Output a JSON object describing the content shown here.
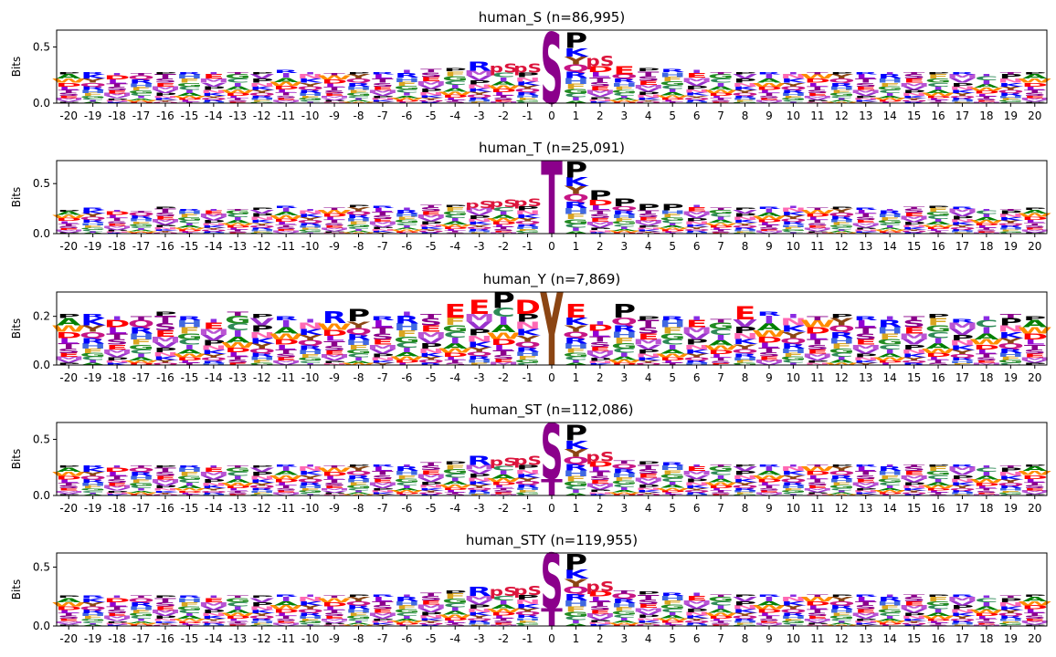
{
  "figure": {
    "background": "#ffffff"
  },
  "colors": {
    "S": "#8b008b",
    "T": "#8b008b",
    "Y": "#8b4513",
    "P": "#000000",
    "pS": "#dc143c",
    "pT": "#dc143c",
    "R": "#0000ff",
    "K": "#0000ff",
    "H": "#4169e1",
    "D": "#ff0000",
    "E": "#ff0000",
    "A": "#008000",
    "G": "#228b22",
    "C": "#2e8b57",
    "L": "#9400d3",
    "I": "#8a2be2",
    "V": "#9932cc",
    "M": "#ba55d3",
    "F": "#daa520",
    "W": "#ff8c00",
    "N": "#ff69b4",
    "Q": "#c71585"
  },
  "chart_data": [
    {
      "type": "logo",
      "title": "human_S (n=86,995)",
      "ylabel": "Bits",
      "ylim": [
        0,
        0.65
      ],
      "yticks": [
        "0.0",
        "0.5"
      ],
      "ytick_values": [
        0,
        0.5
      ],
      "positions": [
        -20,
        -19,
        -18,
        -17,
        -16,
        -15,
        -14,
        -13,
        -12,
        -11,
        -10,
        -9,
        -8,
        -7,
        -6,
        -5,
        -4,
        -3,
        -2,
        -1,
        0,
        1,
        2,
        3,
        4,
        5,
        6,
        7,
        8,
        9,
        10,
        11,
        12,
        13,
        14,
        15,
        16,
        17,
        18,
        19,
        20
      ],
      "center": {
        "top": "S",
        "top_bits": 0.63,
        "bottom": "",
        "bottom_bits": 0
      },
      "column_bits": [
        0.28,
        0.28,
        0.27,
        0.27,
        0.28,
        0.28,
        0.28,
        0.28,
        0.28,
        0.29,
        0.28,
        0.27,
        0.28,
        0.28,
        0.29,
        0.3,
        0.31,
        0.37,
        0.35,
        0.35,
        0.63,
        0.63,
        0.42,
        0.33,
        0.31,
        0.3,
        0.29,
        0.28,
        0.28,
        0.28,
        0.28,
        0.28,
        0.28,
        0.28,
        0.28,
        0.28,
        0.28,
        0.28,
        0.26,
        0.28,
        0.28
      ],
      "top_letters": {
        "1": "P",
        "-3": "R",
        "-2": "pS",
        "-1": "pS",
        "2": "pS",
        "3": "E"
      }
    },
    {
      "type": "logo",
      "title": "human_T (n=25,091)",
      "ylabel": "Bits",
      "ylim": [
        0,
        0.73
      ],
      "yticks": [
        "0.0",
        "0.5"
      ],
      "ytick_values": [
        0,
        0.5
      ],
      "positions": [
        -20,
        -19,
        -18,
        -17,
        -16,
        -15,
        -14,
        -13,
        -12,
        -11,
        -10,
        -9,
        -8,
        -7,
        -6,
        -5,
        -4,
        -3,
        -2,
        -1,
        0,
        1,
        2,
        3,
        4,
        5,
        6,
        7,
        8,
        9,
        10,
        11,
        12,
        13,
        14,
        15,
        16,
        17,
        18,
        19,
        20
      ],
      "center": {
        "top": "T",
        "top_bits": 0.73,
        "bottom": "",
        "bottom_bits": 0
      },
      "column_bits": [
        0.24,
        0.26,
        0.24,
        0.23,
        0.27,
        0.25,
        0.25,
        0.25,
        0.26,
        0.28,
        0.25,
        0.26,
        0.29,
        0.28,
        0.26,
        0.29,
        0.29,
        0.33,
        0.34,
        0.35,
        0.73,
        0.72,
        0.43,
        0.35,
        0.3,
        0.3,
        0.29,
        0.26,
        0.26,
        0.27,
        0.28,
        0.26,
        0.27,
        0.26,
        0.25,
        0.27,
        0.28,
        0.27,
        0.25,
        0.25,
        0.26
      ],
      "top_letters": {
        "1": "P",
        "-2": "pS",
        "-1": "pS",
        "-3": "pS",
        "2": "P",
        "3": "P",
        "4": "P",
        "5": "P"
      }
    },
    {
      "type": "logo",
      "title": "human_Y (n=7,869)",
      "ylabel": "Bits",
      "ylim": [
        0,
        0.3
      ],
      "yticks": [
        "0.0",
        "0.2"
      ],
      "ytick_values": [
        0,
        0.2
      ],
      "positions": [
        -20,
        -19,
        -18,
        -17,
        -16,
        -15,
        -14,
        -13,
        -12,
        -11,
        -10,
        -9,
        -8,
        -7,
        -6,
        -5,
        -4,
        -3,
        -2,
        -1,
        0,
        1,
        2,
        3,
        4,
        5,
        6,
        7,
        8,
        9,
        10,
        11,
        12,
        13,
        14,
        15,
        16,
        17,
        18,
        19,
        20
      ],
      "center": {
        "top": "Y",
        "top_bits": 0.3,
        "bottom": "",
        "bottom_bits": 0
      },
      "column_bits": [
        0.21,
        0.21,
        0.2,
        0.2,
        0.22,
        0.2,
        0.19,
        0.22,
        0.21,
        0.2,
        0.19,
        0.22,
        0.23,
        0.2,
        0.22,
        0.21,
        0.25,
        0.27,
        0.3,
        0.27,
        0.3,
        0.25,
        0.18,
        0.25,
        0.2,
        0.2,
        0.2,
        0.19,
        0.24,
        0.22,
        0.21,
        0.2,
        0.21,
        0.2,
        0.2,
        0.2,
        0.21,
        0.19,
        0.2,
        0.21,
        0.2
      ],
      "top_letters": {
        "-9": "R",
        "-8": "P",
        "-4": "E",
        "-3": "E",
        "-2": "P",
        "-1": "D",
        "1": "E",
        "3": "P",
        "8": "E"
      }
    },
    {
      "type": "logo",
      "title": "human_ST (n=112,086)",
      "ylabel": "Bits",
      "ylim": [
        0,
        0.65
      ],
      "yticks": [
        "0.0",
        "0.5"
      ],
      "ytick_values": [
        0,
        0.5
      ],
      "positions": [
        -20,
        -19,
        -18,
        -17,
        -16,
        -15,
        -14,
        -13,
        -12,
        -11,
        -10,
        -9,
        -8,
        -7,
        -6,
        -5,
        -4,
        -3,
        -2,
        -1,
        0,
        1,
        2,
        3,
        4,
        5,
        6,
        7,
        8,
        9,
        10,
        11,
        12,
        13,
        14,
        15,
        16,
        17,
        18,
        19,
        20
      ],
      "center": {
        "top": "S",
        "top_bits": 0.64,
        "bottom": "T",
        "bottom_bits": 0.15
      },
      "column_bits": [
        0.27,
        0.27,
        0.27,
        0.27,
        0.27,
        0.27,
        0.27,
        0.27,
        0.27,
        0.28,
        0.28,
        0.27,
        0.28,
        0.28,
        0.28,
        0.29,
        0.3,
        0.35,
        0.34,
        0.35,
        0.64,
        0.63,
        0.39,
        0.31,
        0.3,
        0.29,
        0.28,
        0.28,
        0.28,
        0.28,
        0.28,
        0.28,
        0.28,
        0.28,
        0.28,
        0.28,
        0.28,
        0.28,
        0.27,
        0.27,
        0.28
      ],
      "top_letters": {
        "1": "P",
        "-3": "R",
        "-2": "pS",
        "-1": "pS",
        "2": "pS"
      }
    },
    {
      "type": "logo",
      "title": "human_STY (n=119,955)",
      "ylabel": "Bits",
      "ylim": [
        0,
        0.62
      ],
      "yticks": [
        "0.0",
        "0.5"
      ],
      "ytick_values": [
        0,
        0.5
      ],
      "positions": [
        -20,
        -19,
        -18,
        -17,
        -16,
        -15,
        -14,
        -13,
        -12,
        -11,
        -10,
        -9,
        -8,
        -7,
        -6,
        -5,
        -4,
        -3,
        -2,
        -1,
        0,
        1,
        2,
        3,
        4,
        5,
        6,
        7,
        8,
        9,
        10,
        11,
        12,
        13,
        14,
        15,
        16,
        17,
        18,
        19,
        20
      ],
      "center": {
        "top": "S",
        "top_bits": 0.62,
        "bottom": "T",
        "bottom_bits": 0.15
      },
      "column_bits": [
        0.26,
        0.26,
        0.26,
        0.26,
        0.26,
        0.26,
        0.26,
        0.26,
        0.26,
        0.27,
        0.27,
        0.26,
        0.27,
        0.27,
        0.27,
        0.28,
        0.3,
        0.33,
        0.33,
        0.34,
        0.62,
        0.61,
        0.38,
        0.3,
        0.29,
        0.28,
        0.28,
        0.27,
        0.27,
        0.27,
        0.27,
        0.27,
        0.27,
        0.27,
        0.27,
        0.27,
        0.27,
        0.27,
        0.26,
        0.26,
        0.27
      ],
      "top_letters": {
        "1": "P",
        "-3": "R",
        "-2": "pS",
        "-1": "pS",
        "2": "pS"
      }
    }
  ]
}
